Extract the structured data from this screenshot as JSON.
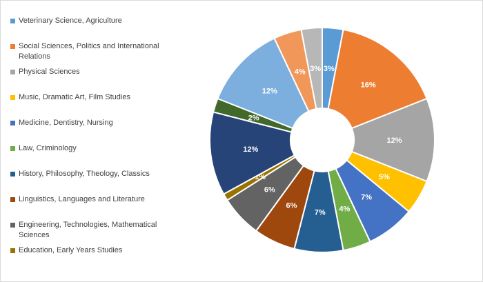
{
  "chart_data": {
    "type": "pie",
    "style": "doughnut",
    "legend_position": "left",
    "title": "",
    "categories": [
      "Veterinary Science, Agriculture",
      "Social Sciences, Politics and International Relations",
      "Physical Sciences",
      "Music, Dramatic Art, Film Studies",
      "Medicine, Dentistry, Nursing",
      "Law, Criminology",
      "History, Philosophy, Theology, Classics",
      "Linguistics, Languages and Literature",
      "Engineering, Technologies, Mathematical Sciences",
      "Education, Early Years Studies",
      "",
      "",
      "",
      "",
      ""
    ],
    "values": [
      3,
      16,
      12,
      5,
      7,
      4,
      7,
      6,
      6,
      1,
      12,
      2,
      12,
      4,
      3
    ],
    "value_labels": [
      "3%",
      "16%",
      "12%",
      "5%",
      "7%",
      "4%",
      "7%",
      "6%",
      "6%",
      "1%",
      "12%",
      "2%",
      "12%",
      "4%",
      "3%"
    ],
    "colors": [
      "#5B9BD5",
      "#ED7D31",
      "#A5A5A5",
      "#FFC000",
      "#4472C4",
      "#70AD47",
      "#255E91",
      "#9E480E",
      "#636363",
      "#997300",
      "#264478",
      "#43682B",
      "#7CAFDD",
      "#F1975A",
      "#B7B7B7"
    ],
    "legend": [
      {
        "label_lines": [
          "Veterinary Science, Agriculture"
        ],
        "color": "#5B9BD5"
      },
      {
        "label_lines": [
          "Social Sciences, Politics and International",
          "Relations"
        ],
        "color": "#ED7D31"
      },
      {
        "label_lines": [
          "Physical Sciences"
        ],
        "color": "#A5A5A5"
      },
      {
        "label_lines": [
          "Music, Dramatic Art, Film Studies"
        ],
        "color": "#FFC000"
      },
      {
        "label_lines": [
          "Medicine, Dentistry, Nursing"
        ],
        "color": "#4472C4"
      },
      {
        "label_lines": [
          "Law, Criminology"
        ],
        "color": "#70AD47"
      },
      {
        "label_lines": [
          "History, Philosophy, Theology, Classics"
        ],
        "color": "#255E91"
      },
      {
        "label_lines": [
          "Linguistics, Languages and Literature"
        ],
        "color": "#9E480E"
      },
      {
        "label_lines": [
          "Engineering, Technologies, Mathematical",
          "Sciences"
        ],
        "color": "#636363"
      },
      {
        "label_lines": [
          "Education, Early Years Studies"
        ],
        "color": "#997300"
      }
    ]
  }
}
